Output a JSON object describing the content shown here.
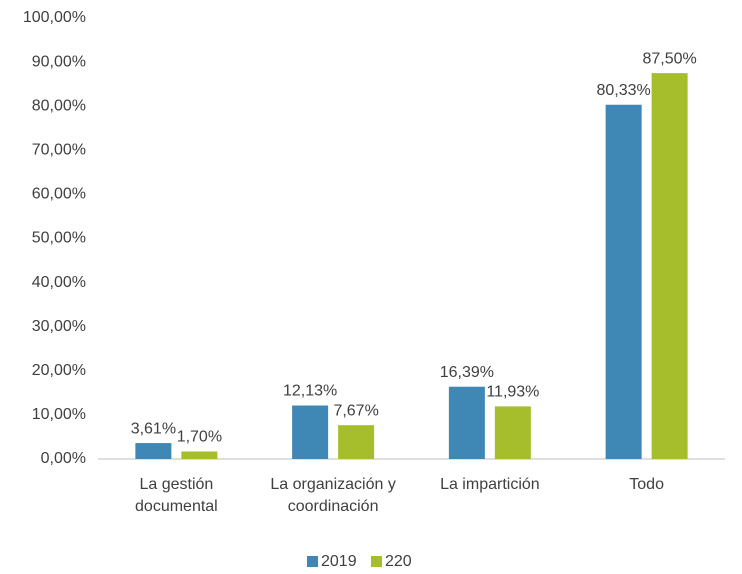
{
  "chart_data": {
    "type": "bar",
    "categories": [
      "La gestión documental",
      "La organización y coordinación",
      "La impartición",
      "Todo"
    ],
    "series": [
      {
        "name": "2019",
        "color": "#3f87b5",
        "values": [
          3.61,
          12.13,
          16.39,
          80.33
        ],
        "value_labels": [
          "3,61%",
          "12,13%",
          "16,39%",
          "80,33%"
        ]
      },
      {
        "name": "220",
        "color": "#a6bd2c",
        "values": [
          1.7,
          7.67,
          11.93,
          87.5
        ],
        "value_labels": [
          "1,70%",
          "7,67%",
          "11,93%",
          "87,50%"
        ]
      }
    ],
    "ylim": [
      0,
      100
    ],
    "yticks": [
      {
        "value": 0,
        "label": "0,00%"
      },
      {
        "value": 10,
        "label": "10,00%"
      },
      {
        "value": 20,
        "label": "20,00%"
      },
      {
        "value": 30,
        "label": "30,00%"
      },
      {
        "value": 40,
        "label": "40,00%"
      },
      {
        "value": 50,
        "label": "50,00%"
      },
      {
        "value": 60,
        "label": "60,00%"
      },
      {
        "value": 70,
        "label": "70,00%"
      },
      {
        "value": 80,
        "label": "80,00%"
      },
      {
        "value": 90,
        "label": "90,00%"
      },
      {
        "value": 100,
        "label": "100,00%"
      }
    ],
    "grid": false,
    "legend": "bottom"
  }
}
